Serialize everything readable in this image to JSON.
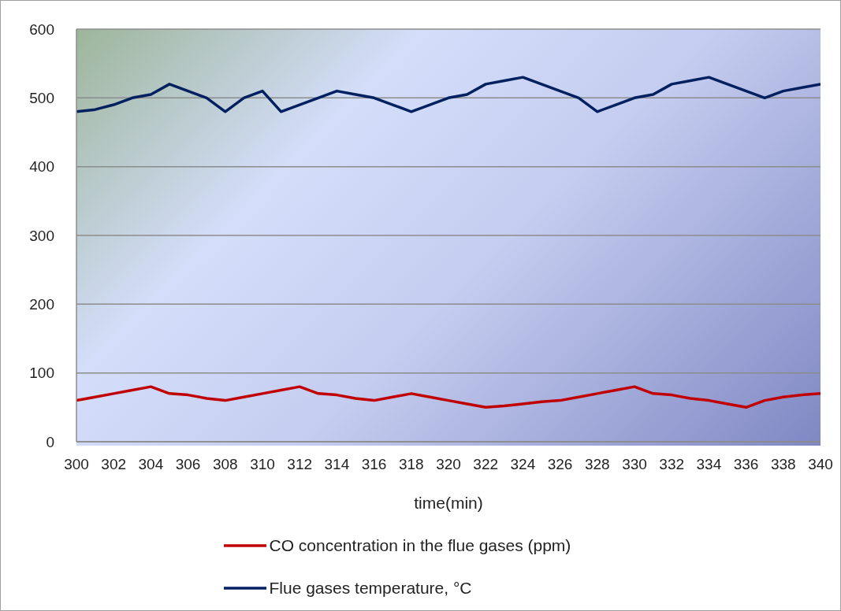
{
  "chart_data": {
    "type": "line",
    "xlabel": "time(min)",
    "x": [
      300,
      301,
      302,
      303,
      304,
      305,
      306,
      307,
      308,
      309,
      310,
      311,
      312,
      313,
      314,
      315,
      316,
      317,
      318,
      319,
      320,
      321,
      322,
      323,
      324,
      325,
      326,
      327,
      328,
      329,
      330,
      331,
      332,
      333,
      334,
      335,
      336,
      337,
      338,
      339,
      340
    ],
    "series": [
      {
        "name": "CO concentration in the flue gases (ppm)",
        "color": "#c00000",
        "values": [
          60,
          65,
          70,
          75,
          80,
          70,
          68,
          63,
          60,
          65,
          70,
          75,
          80,
          70,
          68,
          63,
          60,
          65,
          70,
          65,
          60,
          55,
          50,
          52,
          55,
          58,
          60,
          65,
          70,
          75,
          80,
          70,
          68,
          63,
          60,
          55,
          50,
          60,
          65,
          68,
          70
        ]
      },
      {
        "name": "Flue gases temperature, °C",
        "color": "#002060",
        "values": [
          480,
          483,
          490,
          500,
          505,
          520,
          510,
          500,
          480,
          500,
          510,
          480,
          490,
          500,
          510,
          505,
          500,
          490,
          480,
          490,
          500,
          505,
          520,
          525,
          530,
          520,
          510,
          500,
          480,
          490,
          500,
          505,
          520,
          525,
          530,
          520,
          510,
          500,
          510,
          515,
          520
        ]
      }
    ],
    "xlim": [
      300,
      340
    ],
    "xticks": [
      300,
      302,
      304,
      306,
      308,
      310,
      312,
      314,
      316,
      318,
      320,
      322,
      324,
      326,
      328,
      330,
      332,
      334,
      336,
      338,
      340
    ],
    "ylim": [
      0,
      600
    ],
    "yticks": [
      0,
      100,
      200,
      300,
      400,
      500,
      600
    ],
    "grid": "y",
    "legend": "bottom",
    "marker": "none",
    "line_style": "solid"
  }
}
